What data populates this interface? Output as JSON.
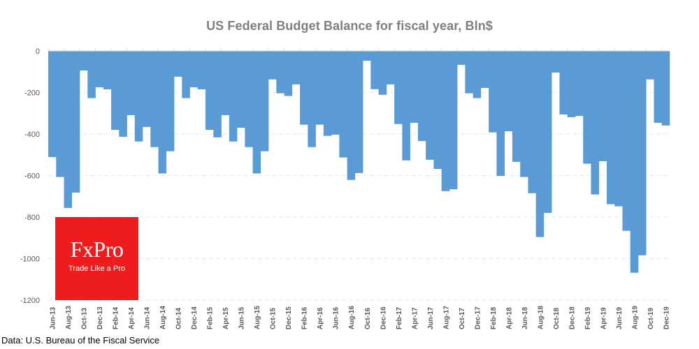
{
  "chart_data": {
    "type": "bar",
    "title": "US Federal Budget Balance  for fiscal year, Bln$",
    "xlabel": "",
    "ylabel": "",
    "ylim": [
      -1200,
      0
    ],
    "yticks": [
      0,
      -200,
      -400,
      -600,
      -800,
      -1000,
      -1200
    ],
    "grid": true,
    "bar_color": "#5b9bd5",
    "categories": [
      "Jun-13",
      "Jul-13",
      "Aug-13",
      "Sep-13",
      "Oct-13",
      "Nov-13",
      "Dec-13",
      "Jan-14",
      "Feb-14",
      "Mar-14",
      "Apr-14",
      "May-14",
      "Jun-14",
      "Jul-14",
      "Aug-14",
      "Sep-14",
      "Oct-14",
      "Nov-14",
      "Dec-14",
      "Jan-15",
      "Feb-15",
      "Mar-15",
      "Apr-15",
      "May-15",
      "Jun-15",
      "Jul-15",
      "Aug-15",
      "Sep-15",
      "Oct-15",
      "Nov-15",
      "Dec-15",
      "Jan-16",
      "Feb-16",
      "Mar-16",
      "Apr-16",
      "May-16",
      "Jun-16",
      "Jul-16",
      "Aug-16",
      "Sep-16",
      "Oct-16",
      "Nov-16",
      "Dec-16",
      "Jan-17",
      "Feb-17",
      "Mar-17",
      "Apr-17",
      "May-17",
      "Jun-17",
      "Jul-17",
      "Aug-17",
      "Sep-17",
      "Oct-17",
      "Nov-17",
      "Dec-17",
      "Jan-18",
      "Feb-18",
      "Mar-18",
      "Apr-18",
      "May-18",
      "Jun-18",
      "Jul-18",
      "Aug-18",
      "Sep-18",
      "Oct-18",
      "Nov-18",
      "Dec-18",
      "Jan-19",
      "Feb-19",
      "Mar-19",
      "Apr-19",
      "May-19",
      "Jun-19",
      "Jul-19",
      "Aug-19",
      "Sep-19",
      "Oct-19",
      "Nov-19",
      "Dec-19"
    ],
    "tick_labels": [
      "Jun-13",
      "Aug-13",
      "Oct-13",
      "Dec-13",
      "Feb-14",
      "Apr-14",
      "Jun-14",
      "Aug-14",
      "Oct-14",
      "Dec-14",
      "Feb-15",
      "Apr-15",
      "Jun-15",
      "Aug-15",
      "Oct-15",
      "Dec-15",
      "Feb-16",
      "Apr-16",
      "Jun-16",
      "Aug-16",
      "Oct-16",
      "Dec-16",
      "Feb-17",
      "Apr-17",
      "Jun-17",
      "Aug-17",
      "Oct-17",
      "Dec-17",
      "Feb-18",
      "Apr-18",
      "Jun-18",
      "Aug-18",
      "Oct-18",
      "Dec-18",
      "Feb-19",
      "Apr-19",
      "Jun-19",
      "Aug-19",
      "Oct-19",
      "Dec-19"
    ],
    "values": [
      -511,
      -607,
      -756,
      -682,
      -94,
      -227,
      -175,
      -185,
      -380,
      -413,
      -309,
      -436,
      -366,
      -463,
      -590,
      -483,
      -124,
      -227,
      -175,
      -185,
      -380,
      -416,
      -309,
      -436,
      -370,
      -463,
      -590,
      -483,
      -137,
      -204,
      -217,
      -161,
      -355,
      -463,
      -355,
      -409,
      -403,
      -513,
      -621,
      -588,
      -47,
      -184,
      -211,
      -161,
      -352,
      -527,
      -346,
      -434,
      -524,
      -568,
      -675,
      -666,
      -67,
      -204,
      -227,
      -178,
      -392,
      -602,
      -387,
      -534,
      -607,
      -685,
      -896,
      -780,
      -104,
      -306,
      -319,
      -313,
      -543,
      -691,
      -531,
      -738,
      -748,
      -866,
      -1068,
      -984,
      -137,
      -346,
      -359
    ]
  },
  "source_note": "Data: U.S. Bureau of the Fiscal Service",
  "logo": {
    "brand": "FxPro",
    "tagline": "Trade Like a Pro",
    "color": "#ee1c1c"
  }
}
